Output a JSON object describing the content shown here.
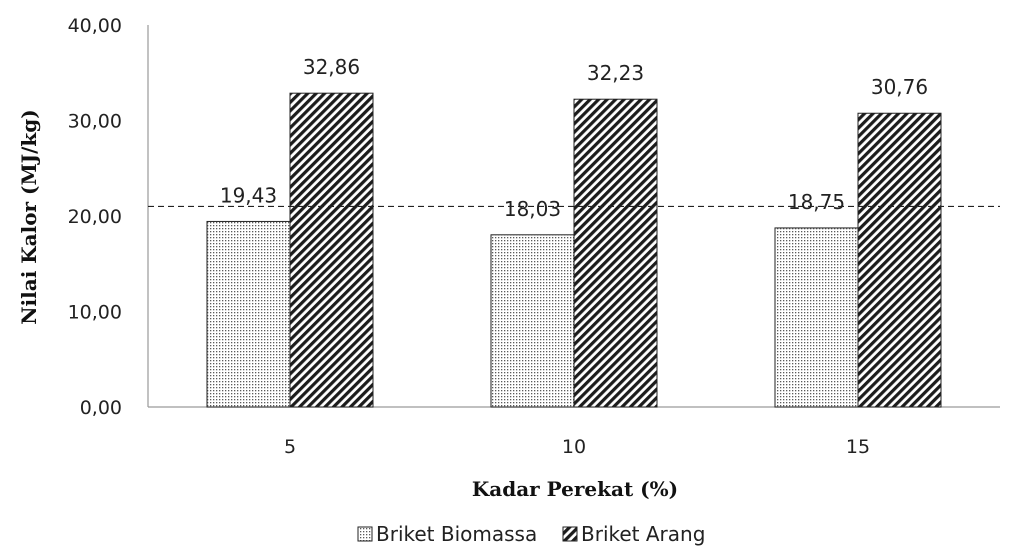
{
  "chart_data": {
    "type": "bar",
    "categories": [
      "5",
      "10",
      "15"
    ],
    "series": [
      {
        "name": "Briket Biomassa",
        "values": [
          19.43,
          18.03,
          18.75
        ],
        "labels": [
          "19,43",
          "18,03",
          "18,75"
        ],
        "pattern": "dots"
      },
      {
        "name": "Briket Arang",
        "values": [
          32.86,
          32.23,
          30.76
        ],
        "labels": [
          "32,86",
          "32,23",
          "30,76"
        ],
        "pattern": "diagonal-hatch"
      }
    ],
    "xlabel": "Kadar Perekat (%)",
    "ylabel": "Nilai Kalor (MJ/kg)",
    "ylim": [
      0,
      40
    ],
    "yticks": [
      0,
      10,
      20,
      30,
      40
    ],
    "ytick_labels": [
      "0,00",
      "10,00",
      "20,00",
      "30,00",
      "40,00"
    ],
    "reference_line": {
      "value": 21,
      "style": "dashed"
    },
    "legend_position": "bottom",
    "grid": false,
    "colors": {
      "ink": "#222222",
      "fill": "#ffffff"
    }
  }
}
